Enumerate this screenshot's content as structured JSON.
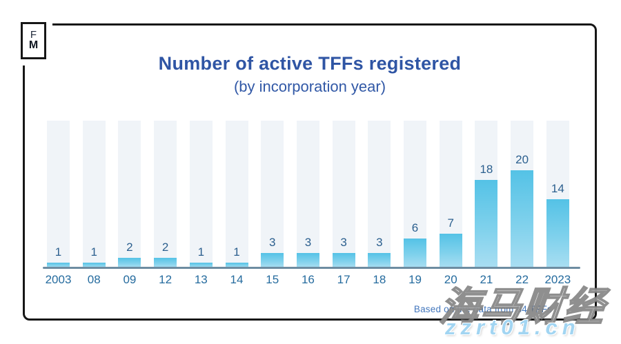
{
  "logo": {
    "line1": "F",
    "line2": "M"
  },
  "header": {
    "title": "Number of active TFFs registered",
    "subtitle": "(by incorporation year)"
  },
  "chart_data": {
    "type": "bar",
    "categories": [
      "2003",
      "08",
      "09",
      "12",
      "13",
      "14",
      "15",
      "16",
      "17",
      "18",
      "19",
      "20",
      "21",
      "22",
      "2023"
    ],
    "values": [
      1,
      1,
      2,
      2,
      1,
      1,
      3,
      3,
      3,
      3,
      6,
      7,
      18,
      20,
      14
    ],
    "title": "Number of active TFFs registered",
    "subtitle": "(by incorporation year)",
    "xlabel": "",
    "ylabel": "",
    "ylim": [
      0,
      30
    ],
    "grid": false,
    "legend": false,
    "data_labels_shown": true,
    "bar_gradient": [
      "#54c2e6",
      "#a9def2"
    ],
    "background_column_color": "#f0f4f8",
    "axis_line_color": "#6d8ca1",
    "value_label_color": "#2b5f8e",
    "tick_label_color": "#256b9e"
  },
  "footer": {
    "note": "Based on the data from 84 TFFs"
  },
  "watermark": {
    "cjk_text": "海马财经",
    "url_text": "zzrt01.cn",
    "url_color": "#a2d5f2"
  },
  "colors": {
    "title_blue": "#2f55a4",
    "card_border": "#161616",
    "background": "#ffffff"
  }
}
